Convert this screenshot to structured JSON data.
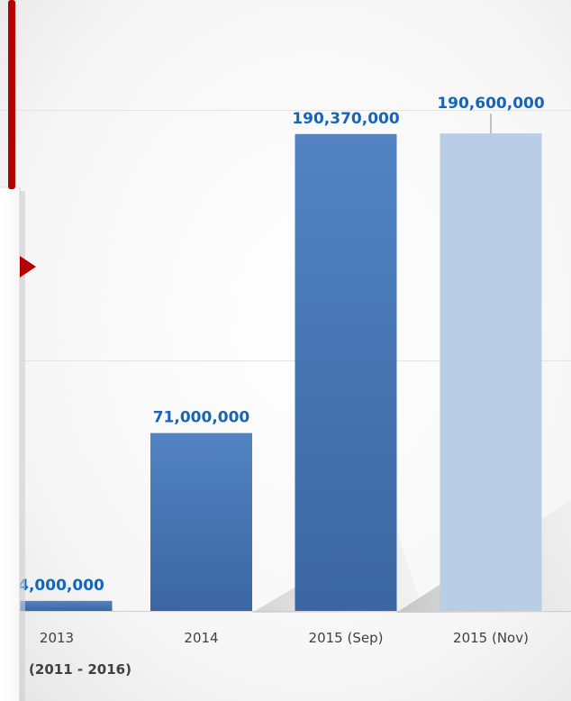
{
  "chart_data": {
    "type": "bar",
    "categories": [
      "2013",
      "2014",
      "2015 (Sep)",
      "2015 (Nov)"
    ],
    "values": [
      4000000,
      71000000,
      190370000,
      190600000
    ],
    "data_labels": [
      "4,000,000",
      "71,000,000",
      "190,370,000",
      "190,600,000"
    ],
    "xlabel": "(2011 - 2016)",
    "ylabel": "",
    "ylim": [
      0,
      200000000
    ],
    "grid": true,
    "legend": "none",
    "colors": {
      "bar_dark_top": "#5283c3",
      "bar_dark_bottom": "#3b66a1",
      "bar_light": "#b9cde6",
      "label_color": "#1565b9",
      "gridline": "#e3e3e3",
      "accent_red": "#b30000"
    }
  }
}
